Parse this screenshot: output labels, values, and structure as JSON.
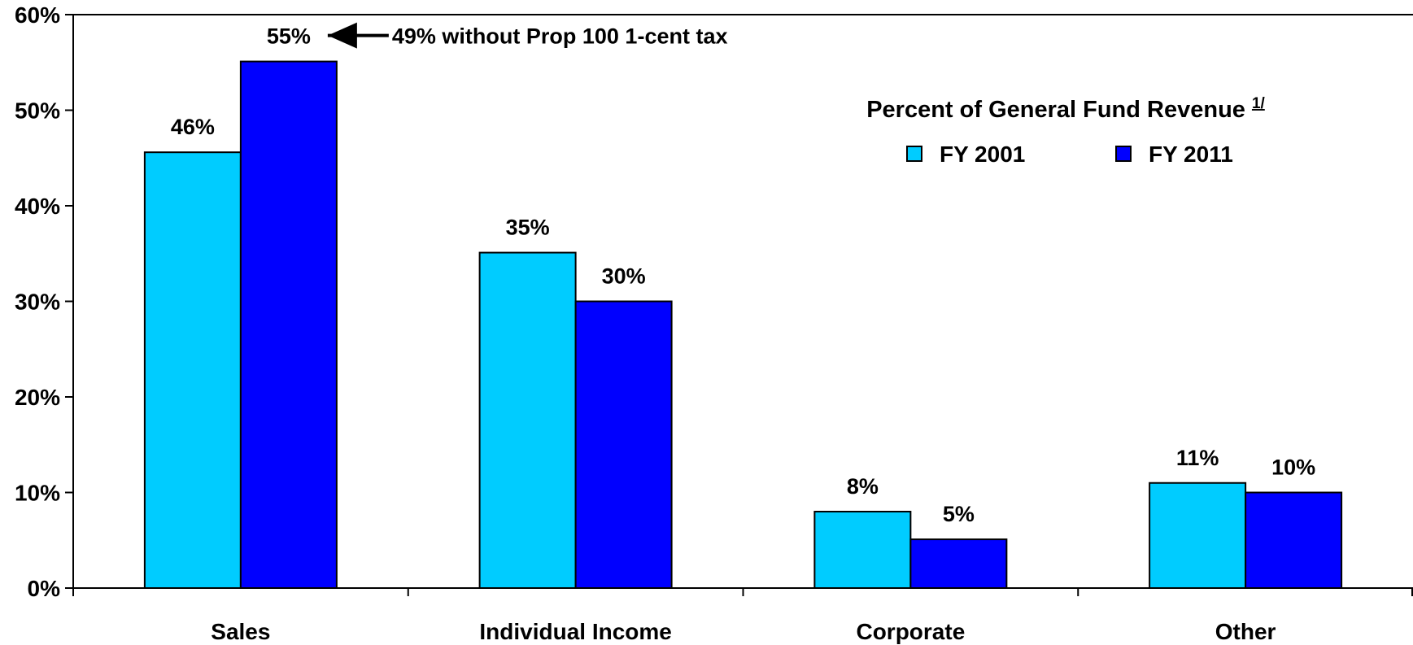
{
  "chart_data": {
    "type": "bar",
    "title": "",
    "xlabel": "",
    "ylabel": "",
    "categories": [
      "Sales",
      "Individual Income",
      "Corporate",
      "Other"
    ],
    "series": [
      {
        "name": "FY 2001",
        "color": "#00ccff",
        "values": [
          45.6,
          35.1,
          8.0,
          11.0
        ],
        "labels": [
          "46%",
          "35%",
          "8%",
          "11%"
        ]
      },
      {
        "name": "FY 2011",
        "color": "#0000ff",
        "values": [
          55.1,
          30.0,
          5.1,
          10.0
        ],
        "labels": [
          "55%",
          "30%",
          "5%",
          "10%"
        ]
      }
    ],
    "ylim": [
      0,
      60
    ],
    "yticks": [
      0,
      10,
      20,
      30,
      40,
      50,
      60
    ],
    "ytick_labels": [
      "0%",
      "10%",
      "20%",
      "30%",
      "40%",
      "50%",
      "60%"
    ],
    "grid": false,
    "legend": {
      "title": "Percent of General Fund Revenue",
      "footnote_marker": "1/",
      "placement": "top-right"
    },
    "annotation": {
      "text": "49% without Prop 100 1-cent tax",
      "target_category": "Sales",
      "target_series": "FY 2011",
      "arrow": "left"
    }
  }
}
